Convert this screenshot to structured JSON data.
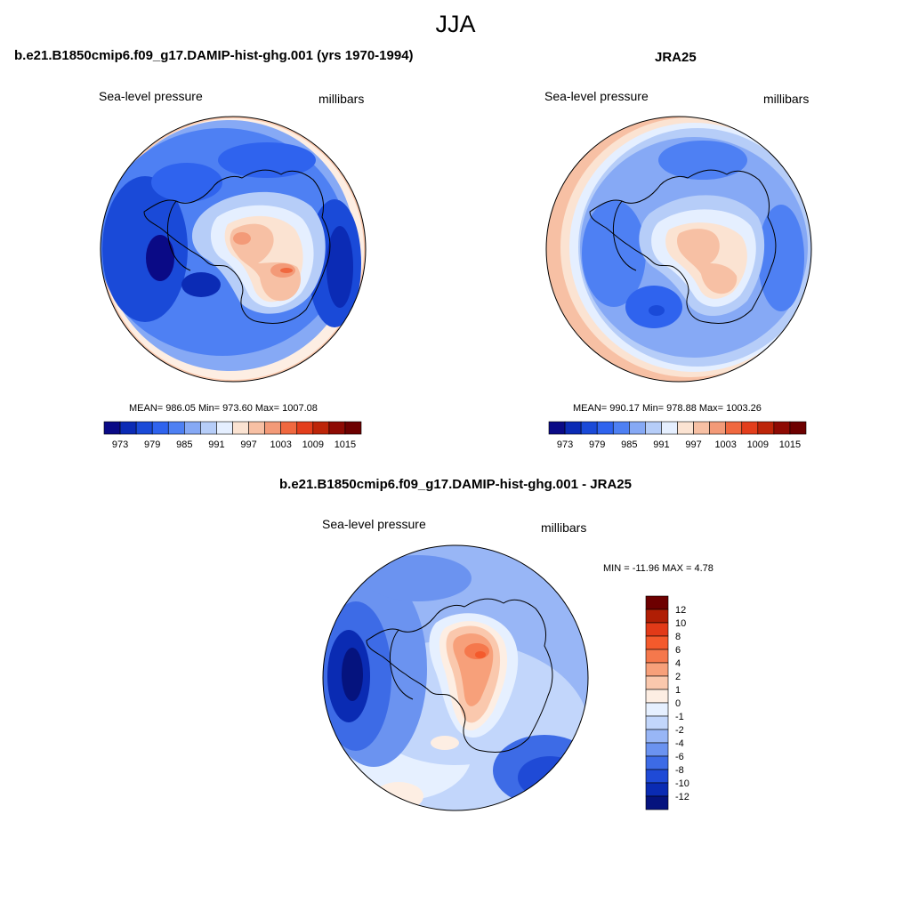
{
  "figure": {
    "season": "JJA"
  },
  "panels": [
    {
      "title": "b.e21.B1850cmip6.f09_g17.DAMIP-hist-ghg.001 (yrs 1970-1994)",
      "variable": "Sea-level pressure",
      "units": "millibars",
      "stats": "MEAN= 986.05  Min= 973.60  Max= 1007.08",
      "colorbar": {
        "levels": [
          973,
          976,
          979,
          982,
          985,
          988,
          991,
          994,
          997,
          1000,
          1003,
          1006,
          1009,
          1012,
          1015
        ],
        "tick_labels": [
          "973",
          "979",
          "985",
          "991",
          "997",
          "1003",
          "1009",
          "1015"
        ],
        "colors": [
          "#0a0a86",
          "#0b2bb5",
          "#1a4ad8",
          "#2f63ee",
          "#4e80f3",
          "#86a9f5",
          "#b6cdf8",
          "#e5efff",
          "#fbe3d2",
          "#f7c0a4",
          "#f39a78",
          "#f0683f",
          "#e33e1c",
          "#bd2509",
          "#8e0a03",
          "#6d0000"
        ]
      }
    },
    {
      "title": "JRA25",
      "variable": "Sea-level pressure",
      "units": "millibars",
      "stats": "MEAN= 990.17  Min= 978.88  Max= 1003.26",
      "colorbar": {
        "levels": [
          973,
          976,
          979,
          982,
          985,
          988,
          991,
          994,
          997,
          1000,
          1003,
          1006,
          1009,
          1012,
          1015
        ],
        "tick_labels": [
          "973",
          "979",
          "985",
          "991",
          "997",
          "1003",
          "1009",
          "1015"
        ],
        "colors": [
          "#0a0a86",
          "#0b2bb5",
          "#1a4ad8",
          "#2f63ee",
          "#4e80f3",
          "#86a9f5",
          "#b6cdf8",
          "#e5efff",
          "#fbe3d2",
          "#f7c0a4",
          "#f39a78",
          "#f0683f",
          "#e33e1c",
          "#bd2509",
          "#8e0a03",
          "#6d0000"
        ]
      }
    },
    {
      "title": "b.e21.B1850cmip6.f09_g17.DAMIP-hist-ghg.001 - JRA25",
      "variable": "Sea-level pressure",
      "units": "millibars",
      "stats": "MIN = -11.96 MAX =   4.78",
      "colorbar": {
        "tick_labels": [
          "12",
          "10",
          "8",
          "6",
          "4",
          "2",
          "1",
          "0",
          "-1",
          "-2",
          "-4",
          "-6",
          "-8",
          "-10",
          "-12"
        ],
        "colors": [
          "#6d0000",
          "#b01e05",
          "#e23a18",
          "#f45a2c",
          "#f5784c",
          "#f7a07a",
          "#fac8ad",
          "#fdeee3",
          "#e6f0ff",
          "#c2d6fb",
          "#98b6f6",
          "#6b93f0",
          "#3d6be6",
          "#1f4ad6",
          "#0a2bb3",
          "#05137e"
        ]
      }
    }
  ]
}
